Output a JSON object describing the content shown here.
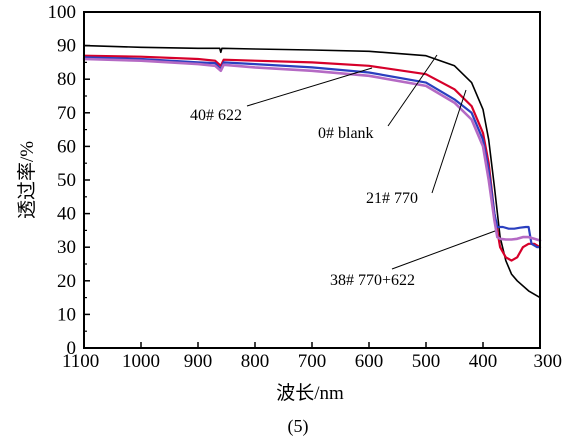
{
  "chart_data": {
    "type": "line",
    "title": "",
    "xlabel": "波长/nm",
    "ylabel": "透过率/%",
    "xlim": [
      1100,
      300
    ],
    "ylim": [
      0,
      100
    ],
    "xticks": [
      1100,
      1000,
      900,
      800,
      700,
      600,
      500,
      400,
      300
    ],
    "yticks": [
      0,
      10,
      20,
      30,
      40,
      50,
      60,
      70,
      80,
      90,
      100
    ],
    "grid": false,
    "legend": "none",
    "caption": "(5)",
    "series": [
      {
        "name": "0# blank",
        "color": "#000000",
        "x": [
          1100,
          1000,
          900,
          862,
          860,
          858,
          800,
          700,
          600,
          500,
          450,
          420,
          400,
          390,
          380,
          370,
          360,
          350,
          340,
          320,
          300
        ],
        "y": [
          90,
          89.5,
          89.2,
          89.2,
          88,
          89.2,
          89,
          88.7,
          88.3,
          87,
          84,
          79,
          71,
          62,
          48,
          33,
          26,
          22,
          20,
          17,
          15
        ]
      },
      {
        "name": "40# 622",
        "color": "#d6002a",
        "x": [
          1100,
          1000,
          900,
          870,
          860,
          855,
          800,
          700,
          600,
          500,
          450,
          420,
          400,
          390,
          380,
          370,
          360,
          350,
          340,
          330,
          320,
          310,
          300
        ],
        "y": [
          87,
          86.7,
          86,
          85.5,
          84,
          85.8,
          85.5,
          85,
          84,
          81.5,
          77,
          72,
          64,
          55,
          40,
          30,
          27,
          26,
          27,
          30,
          31,
          31,
          30
        ]
      },
      {
        "name": "21# 770",
        "color": "#2a3fbf",
        "x": [
          1100,
          1000,
          900,
          870,
          860,
          855,
          800,
          700,
          600,
          500,
          450,
          420,
          400,
          390,
          380,
          375,
          372,
          365,
          355,
          345,
          335,
          325,
          320,
          315,
          305,
          300
        ],
        "y": [
          86.5,
          86,
          85,
          84.8,
          83,
          85,
          84.5,
          83.5,
          82,
          79,
          74,
          70,
          62,
          53,
          40,
          36,
          36,
          36,
          35.5,
          35.5,
          35.8,
          36,
          36,
          31,
          30,
          30
        ]
      },
      {
        "name": "38# 770+622",
        "color": "#b56ac4",
        "x": [
          1100,
          1000,
          900,
          870,
          860,
          855,
          800,
          700,
          600,
          500,
          450,
          420,
          400,
          390,
          380,
          375,
          370,
          360,
          350,
          340,
          330,
          320,
          310,
          300
        ],
        "y": [
          86,
          85.5,
          84.5,
          84,
          82.5,
          84.3,
          83.5,
          82.5,
          81,
          78,
          73,
          68,
          60,
          50,
          38,
          33,
          32.5,
          32.3,
          32.3,
          32.5,
          33,
          33,
          32.5,
          32
        ]
      }
    ],
    "annotations": [
      {
        "text": "40# 622",
        "series": "40# 622"
      },
      {
        "text": "0# blank",
        "series": "0# blank"
      },
      {
        "text": "21# 770",
        "series": "21# 770"
      },
      {
        "text": "38# 770+622",
        "series": "38# 770+622"
      }
    ]
  }
}
